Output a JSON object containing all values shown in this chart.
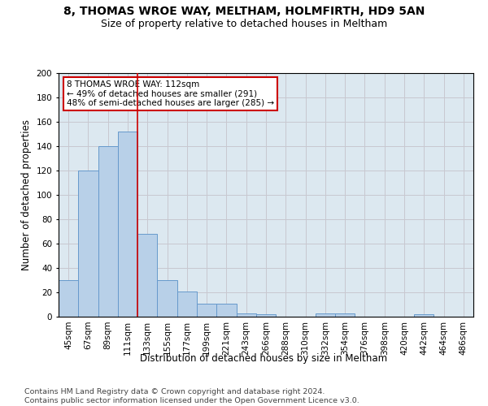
{
  "title1": "8, THOMAS WROE WAY, MELTHAM, HOLMFIRTH, HD9 5AN",
  "title2": "Size of property relative to detached houses in Meltham",
  "xlabel": "Distribution of detached houses by size in Meltham",
  "ylabel": "Number of detached properties",
  "bins": [
    "45sqm",
    "67sqm",
    "89sqm",
    "111sqm",
    "133sqm",
    "155sqm",
    "177sqm",
    "199sqm",
    "221sqm",
    "243sqm",
    "266sqm",
    "288sqm",
    "310sqm",
    "332sqm",
    "354sqm",
    "376sqm",
    "398sqm",
    "420sqm",
    "442sqm",
    "464sqm",
    "486sqm"
  ],
  "values": [
    30,
    120,
    140,
    152,
    68,
    30,
    21,
    11,
    11,
    3,
    2,
    0,
    0,
    3,
    3,
    0,
    0,
    0,
    2,
    0,
    0
  ],
  "bar_color": "#b8d0e8",
  "bar_edge_color": "#6699cc",
  "vline_color": "#cc0000",
  "annotation_line1": "8 THOMAS WROE WAY: 112sqm",
  "annotation_line2": "← 49% of detached houses are smaller (291)",
  "annotation_line3": "48% of semi-detached houses are larger (285) →",
  "annotation_box_color": "#ffffff",
  "annotation_box_edge": "#cc0000",
  "ylim": [
    0,
    200
  ],
  "yticks": [
    0,
    20,
    40,
    60,
    80,
    100,
    120,
    140,
    160,
    180,
    200
  ],
  "grid_color": "#c8c8d0",
  "bg_color": "#dce8f0",
  "footer1": "Contains HM Land Registry data © Crown copyright and database right 2024.",
  "footer2": "Contains public sector information licensed under the Open Government Licence v3.0.",
  "title1_fontsize": 10,
  "title2_fontsize": 9,
  "tick_fontsize": 7.5,
  "ylabel_fontsize": 8.5,
  "xlabel_fontsize": 8.5,
  "footer_fontsize": 6.8,
  "vline_x": 3.5
}
